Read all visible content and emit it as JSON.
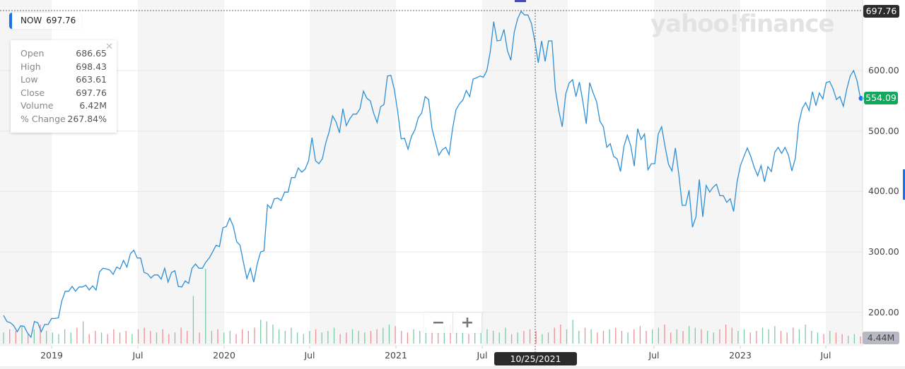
{
  "ticker": {
    "symbol": "NOW",
    "price": "697.76"
  },
  "watermark": "yahoo!finance",
  "tooltip": {
    "rows": [
      {
        "label": "Open",
        "value": "686.65"
      },
      {
        "label": "High",
        "value": "698.43"
      },
      {
        "label": "Low",
        "value": "663.61"
      },
      {
        "label": "Close",
        "value": "697.76"
      },
      {
        "label": "Volume",
        "value": "6.42M"
      },
      {
        "label": "% Change",
        "value": "267.84%"
      }
    ],
    "close_icon": "close-icon"
  },
  "zoom_controls": {
    "zoom_out": "−",
    "zoom_in": "+"
  },
  "crosshair": {
    "date": "10/25/2021",
    "price": "697.76"
  },
  "last_price": "554.09",
  "last_volume": "4.44M",
  "colors": {
    "line": "#2d8fd5",
    "up": "#7fcaa5",
    "down": "#ee8f94",
    "last_price_bg": "#10a85a",
    "crosshair_bg": "#2b2b2b",
    "volume_tag_bg": "#b7b9c2",
    "accent": "#1a73e8"
  },
  "chart_data": {
    "type": "line",
    "title": "",
    "xlabel": "",
    "ylabel": "",
    "ylim": [
      100,
      720
    ],
    "y_ticks": [
      "600.00",
      "500.00",
      "400.00",
      "300.00",
      "200.00"
    ],
    "x_ticks": [
      "2019",
      "Jul",
      "2020",
      "Jul",
      "2021",
      "Jul",
      "Jul",
      "2023",
      "Jul"
    ],
    "grid": true,
    "series": [
      {
        "values": [
          195,
          185,
          183,
          178,
          168,
          178,
          177,
          166,
          159,
          185,
          183,
          168,
          180,
          180,
          190,
          190,
          191,
          219,
          235,
          235,
          243,
          235,
          242,
          242,
          245,
          237,
          244,
          237,
          267,
          273,
          272,
          270,
          263,
          275,
          272,
          286,
          275,
          297,
          303,
          290,
          290,
          266,
          264,
          257,
          262,
          262,
          255,
          273,
          250,
          266,
          269,
          243,
          242,
          252,
          248,
          273,
          280,
          273,
          273,
          283,
          290,
          300,
          311,
          309,
          340,
          342,
          356,
          343,
          317,
          311,
          282,
          256,
          273,
          250,
          280,
          300,
          302,
          378,
          372,
          388,
          389,
          385,
          399,
          399,
          423,
          423,
          439,
          432,
          437,
          451,
          489,
          451,
          446,
          454,
          480,
          499,
          525,
          515,
          497,
          537,
          509,
          520,
          528,
          528,
          537,
          566,
          554,
          550,
          529,
          514,
          540,
          544,
          591,
          592,
          569,
          532,
          487,
          488,
          470,
          491,
          502,
          522,
          530,
          557,
          552,
          504,
          482,
          460,
          469,
          473,
          461,
          504,
          535,
          545,
          551,
          567,
          557,
          586,
          588,
          591,
          589,
          600,
          631,
          681,
          649,
          650,
          668,
          633,
          617,
          664,
          686,
          698,
          692,
          692,
          678,
          649,
          613,
          649,
          615,
          649,
          649,
          568,
          533,
          507,
          561,
          579,
          585,
          557,
          581,
          549,
          512,
          580,
          563,
          549,
          516,
          507,
          473,
          479,
          458,
          454,
          433,
          475,
          493,
          475,
          442,
          504,
          486,
          495,
          436,
          446,
          446,
          495,
          507,
          474,
          445,
          434,
          472,
          428,
          377,
          377,
          402,
          341,
          358,
          420,
          358,
          410,
          399,
          407,
          412,
          393,
          393,
          382,
          388,
          367,
          416,
          443,
          458,
          472,
          458,
          440,
          426,
          443,
          416,
          441,
          433,
          465,
          473,
          463,
          473,
          460,
          434,
          455,
          512,
          537,
          547,
          534,
          565,
          542,
          563,
          553,
          580,
          582,
          570,
          552,
          557,
          541,
          569,
          591,
          600,
          583,
          554
        ]
      }
    ],
    "volume_millions": [
      7,
      9,
      8,
      11,
      6,
      9,
      12,
      8,
      7,
      6,
      9,
      7,
      10,
      14,
      6,
      8,
      7,
      6,
      9,
      7,
      8,
      6,
      9,
      10,
      8,
      7,
      9,
      6,
      7,
      10,
      8,
      30,
      7,
      47,
      8,
      9,
      7,
      8,
      6,
      9,
      8,
      10,
      15,
      14,
      12,
      9,
      8,
      10,
      7,
      6,
      8,
      9,
      7,
      8,
      10,
      6,
      7,
      9,
      8,
      7,
      8,
      9,
      10,
      12,
      11,
      8,
      7,
      9,
      8,
      10,
      8,
      7,
      11,
      12,
      9,
      8,
      6,
      7,
      8,
      9,
      8,
      7,
      10,
      6,
      7,
      8,
      9,
      8,
      6,
      7,
      10,
      12,
      9,
      15,
      8,
      10,
      9,
      7,
      8,
      9,
      10,
      8,
      7,
      9,
      11,
      8,
      9,
      10,
      12,
      7,
      9,
      8,
      11,
      10,
      9,
      8,
      7,
      9,
      12,
      10,
      8,
      9,
      7,
      8,
      10,
      9,
      11,
      8,
      7,
      10,
      9,
      12,
      8,
      7,
      6,
      8,
      7,
      6,
      5,
      6,
      4.44
    ]
  }
}
